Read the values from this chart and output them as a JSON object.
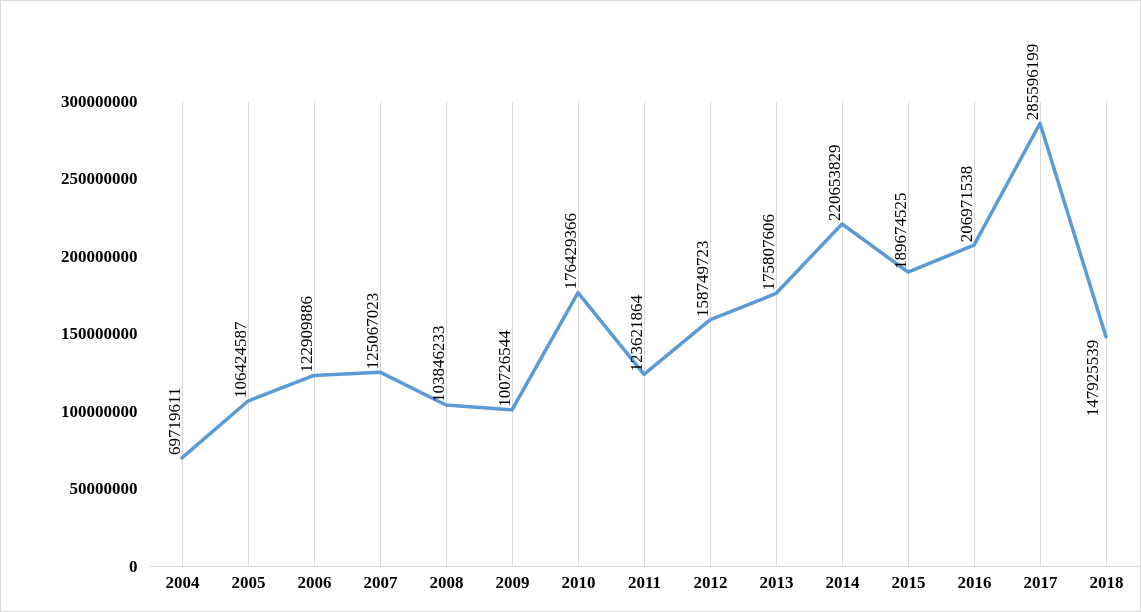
{
  "chart_data": {
    "type": "line",
    "categories": [
      "2004",
      "2005",
      "2006",
      "2007",
      "2008",
      "2009",
      "2010",
      "2011",
      "2012",
      "2013",
      "2014",
      "2015",
      "2016",
      "2017",
      "2018"
    ],
    "series": [
      {
        "color": "#5b9bd5",
        "values": [
          69719611,
          106424587,
          122909886,
          125067023,
          103846233,
          100726544,
          176429366,
          123621864,
          158749723,
          175807606,
          220653829,
          189674525,
          206971538,
          285596199,
          147925539
        ]
      }
    ],
    "ylim": [
      0,
      300000000
    ],
    "yticks": [
      0,
      50000000,
      100000000,
      150000000,
      200000000,
      250000000,
      300000000
    ],
    "data_labels": true,
    "marker": "none",
    "line_style": "solid",
    "grid": "x",
    "legend": false
  }
}
